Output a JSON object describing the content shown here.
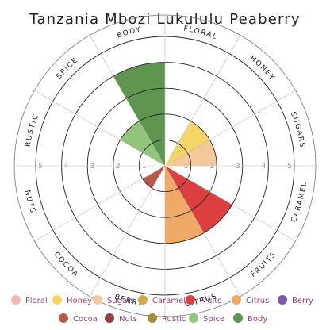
{
  "chart_data": {
    "type": "radial-bar",
    "title": "Tanzania Mbozi Lukululu Peaberry",
    "axes": [
      "Floral",
      "Honey",
      "Sugars",
      "Caramel",
      "Fruits",
      "Citrus",
      "Berry",
      "Cocoa",
      "Nuts",
      "Rustic",
      "Spice",
      "Body"
    ],
    "axis_display": [
      "FLORAL",
      "HONEY",
      "SUGARS",
      "CARAMEL",
      "FRUITS",
      "CITRUS",
      "BERRY",
      "COCOA",
      "NUTS",
      "RUSTIC",
      "SPICE",
      "BODY"
    ],
    "values": [
      0,
      2,
      2,
      0,
      3,
      3,
      0,
      1,
      0,
      0,
      2,
      4
    ],
    "r_range": [
      0,
      5
    ],
    "ticks": [
      "1",
      "2",
      "3",
      "4",
      "5"
    ],
    "colors": {
      "Floral": "#f2b8b8",
      "Honey": "#f5d565",
      "Sugars": "#f5c89a",
      "Caramel": "#d2a84a",
      "Fruits": "#dc3f3f",
      "Citrus": "#eeaa66",
      "Berry": "#7b5ba8",
      "Cocoa": "#b85a48",
      "Nuts": "#8e4040",
      "Rustic": "#a88a3a",
      "Spice": "#92c47a",
      "Body": "#5e9650"
    },
    "legend": [
      "Floral",
      "Honey",
      "Sugars",
      "Caramel",
      "Fruits",
      "Citrus",
      "Berry",
      "Cocoa",
      "Nuts",
      "Rustic",
      "Spice",
      "Body"
    ],
    "legend_position": "bottom",
    "grid": true
  }
}
